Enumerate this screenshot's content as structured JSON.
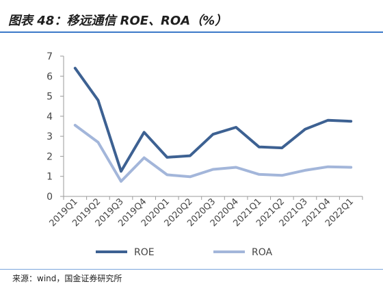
{
  "title": "图表 48：移远通信 ROE、ROA（%）",
  "source": "来源：wind，国金证券研究所",
  "chart_data": {
    "type": "line",
    "categories": [
      "2019Q1",
      "2019Q2",
      "2019Q3",
      "2019Q4",
      "2020Q1",
      "2020Q2",
      "2020Q3",
      "2020Q4",
      "2021Q1",
      "2021Q2",
      "2021Q3",
      "2021Q4",
      "2022Q1"
    ],
    "series": [
      {
        "name": "ROE",
        "color": "#3d6192",
        "values": [
          6.4,
          4.8,
          1.25,
          3.2,
          1.95,
          2.03,
          3.1,
          3.45,
          2.47,
          2.42,
          3.35,
          3.8,
          3.75
        ]
      },
      {
        "name": "ROA",
        "color": "#a3b6da",
        "values": [
          3.55,
          2.7,
          0.75,
          1.93,
          1.08,
          0.98,
          1.35,
          1.45,
          1.1,
          1.05,
          1.3,
          1.48,
          1.45
        ]
      }
    ],
    "y_ticks": [
      "0",
      "1",
      "2",
      "3",
      "4",
      "5",
      "6",
      "7"
    ],
    "ylim": [
      0,
      7
    ],
    "grid": false,
    "legend_position": "bottom"
  }
}
